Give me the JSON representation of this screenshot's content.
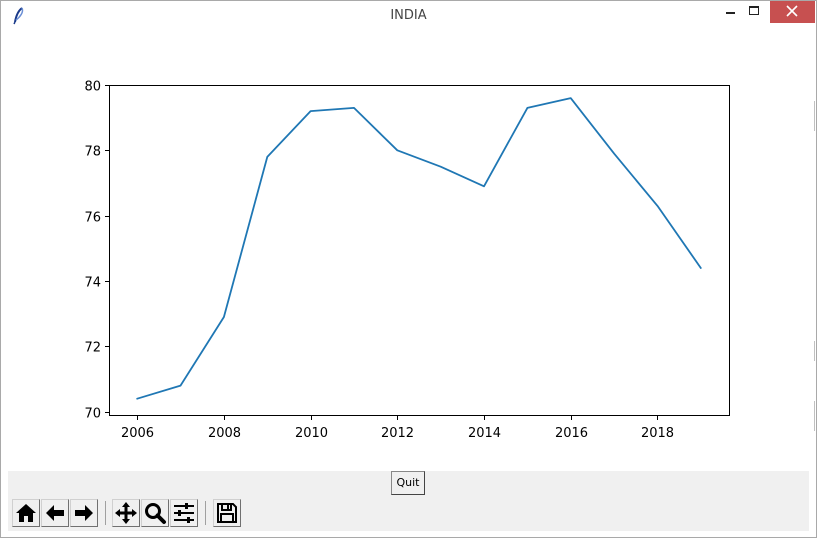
{
  "window": {
    "title": "INDIA",
    "app_icon": "feather-icon",
    "controls": [
      "minimize-icon",
      "maximize-icon",
      "close-icon"
    ]
  },
  "chart_data": {
    "type": "line",
    "title": "",
    "xlabel": "",
    "ylabel": "",
    "x": [
      2006,
      2007,
      2008,
      2009,
      2010,
      2011,
      2012,
      2013,
      2014,
      2015,
      2016,
      2017,
      2018,
      2019
    ],
    "series": [
      {
        "values": [
          70.4,
          70.8,
          72.9,
          77.8,
          79.2,
          79.3,
          78.0,
          77.5,
          76.9,
          79.3,
          79.6,
          77.9,
          76.3,
          74.4
        ],
        "color": "#1f77b4"
      }
    ],
    "xlim": [
      2005.35,
      2019.65
    ],
    "ylim": [
      69.9,
      80.0
    ],
    "xticks": [
      2006,
      2008,
      2010,
      2012,
      2014,
      2016,
      2018
    ],
    "yticks": [
      70,
      72,
      74,
      76,
      78,
      80
    ],
    "grid": false
  },
  "controls": {
    "quit_label": "Quit"
  },
  "toolbar": {
    "items": [
      "home-icon",
      "back-arrow-icon",
      "forward-arrow-icon",
      "pan-icon",
      "zoom-icon",
      "configure-subplots-icon",
      "save-icon"
    ]
  }
}
